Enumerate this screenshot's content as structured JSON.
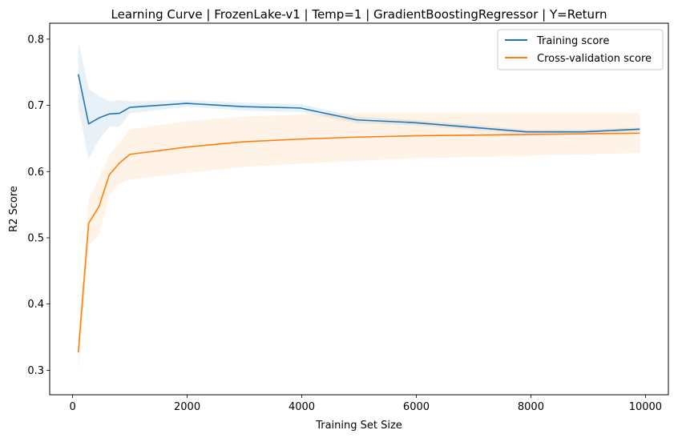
{
  "chart_data": {
    "type": "line",
    "title": "Learning Curve | FrozenLake-v1 | Temp=1 | GradientBoostingRegressor | Y=Return",
    "xlabel": "Training Set Size",
    "ylabel": "R2 Score",
    "xlim": [
      -400,
      10400
    ],
    "ylim": [
      0.263,
      0.824
    ],
    "xticks": [
      0,
      2000,
      4000,
      6000,
      8000,
      10000
    ],
    "yticks": [
      0.3,
      0.4,
      0.5,
      0.6,
      0.7,
      0.8
    ],
    "grid": false,
    "legend_position": "upper right",
    "series": [
      {
        "name": "Training score",
        "color": "#1f77b4",
        "x": [
          100,
          280,
          460,
          640,
          820,
          1000,
          1990,
          2980,
          3970,
          4960,
          5950,
          6940,
          7930,
          8920,
          9900
        ],
        "values": [
          0.747,
          0.672,
          0.681,
          0.687,
          0.688,
          0.697,
          0.703,
          0.698,
          0.696,
          0.678,
          0.674,
          0.667,
          0.66,
          0.66,
          0.664
        ],
        "band_upper": [
          0.796,
          0.725,
          0.714,
          0.706,
          0.708,
          0.706,
          0.708,
          0.704,
          0.702,
          0.683,
          0.678,
          0.671,
          0.663,
          0.663,
          0.667
        ],
        "band_lower": [
          0.698,
          0.619,
          0.648,
          0.668,
          0.668,
          0.688,
          0.698,
          0.692,
          0.69,
          0.673,
          0.67,
          0.663,
          0.657,
          0.657,
          0.661
        ]
      },
      {
        "name": "Cross-validation score",
        "color": "#ff7f0e",
        "x": [
          100,
          280,
          460,
          640,
          820,
          1000,
          1990,
          2980,
          3970,
          4960,
          5950,
          6940,
          7930,
          8920,
          9900
        ],
        "values": [
          0.327,
          0.522,
          0.547,
          0.595,
          0.613,
          0.626,
          0.637,
          0.645,
          0.649,
          0.652,
          0.654,
          0.655,
          0.656,
          0.657,
          0.658
        ],
        "band_upper": [
          0.357,
          0.556,
          0.59,
          0.625,
          0.644,
          0.664,
          0.676,
          0.683,
          0.686,
          0.688,
          0.688,
          0.688,
          0.688,
          0.688,
          0.688
        ],
        "band_lower": [
          0.297,
          0.488,
          0.504,
          0.565,
          0.582,
          0.588,
          0.598,
          0.607,
          0.612,
          0.616,
          0.62,
          0.622,
          0.624,
          0.626,
          0.628
        ]
      }
    ]
  }
}
